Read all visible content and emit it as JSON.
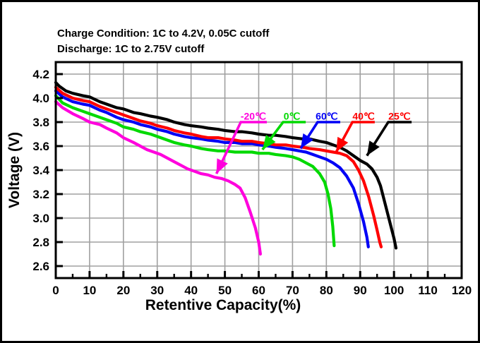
{
  "header": {
    "line1": "Charge Condition: 1C to 4.2V, 0.05C cutoff",
    "line2": "Discharge: 1C to 2.75V cutoff"
  },
  "chart_data": {
    "type": "line",
    "title": "",
    "xlabel": "Retentive Capacity(%)",
    "ylabel": "Voltage (V)",
    "xlim": [
      0,
      120
    ],
    "ylim": [
      2.5,
      4.3
    ],
    "x_major_ticks": [
      0,
      10,
      20,
      30,
      40,
      50,
      60,
      70,
      80,
      90,
      100,
      110,
      120
    ],
    "x_minor_step": 5,
    "y_major_ticks": [
      2.6,
      2.8,
      3.0,
      3.2,
      3.4,
      3.6,
      3.8,
      4.0,
      4.2
    ],
    "y_minor_step": 0.1,
    "grid": true,
    "grid_color": "#a0a0a0",
    "axis_color": "#000000",
    "series": [
      {
        "id": "minus20c",
        "name": "-20℃",
        "color": "#ff00dd",
        "points": [
          [
            0,
            3.97
          ],
          [
            2,
            3.92
          ],
          [
            5,
            3.87
          ],
          [
            8,
            3.83
          ],
          [
            10,
            3.8
          ],
          [
            13,
            3.78
          ],
          [
            15,
            3.75
          ],
          [
            18,
            3.71
          ],
          [
            20,
            3.67
          ],
          [
            23,
            3.63
          ],
          [
            25,
            3.6
          ],
          [
            27,
            3.57
          ],
          [
            29,
            3.55
          ],
          [
            31,
            3.53
          ],
          [
            33,
            3.5
          ],
          [
            35,
            3.47
          ],
          [
            37,
            3.44
          ],
          [
            39,
            3.41
          ],
          [
            41,
            3.39
          ],
          [
            43,
            3.37
          ],
          [
            45,
            3.36
          ],
          [
            47,
            3.34
          ],
          [
            49,
            3.33
          ],
          [
            51,
            3.31
          ],
          [
            53,
            3.28
          ],
          [
            54.5,
            3.25
          ],
          [
            56,
            3.17
          ],
          [
            57.5,
            3.05
          ],
          [
            59,
            2.92
          ],
          [
            60,
            2.8
          ],
          [
            60.5,
            2.7
          ]
        ]
      },
      {
        "id": "0c",
        "name": "0℃",
        "color": "#00d900",
        "points": [
          [
            0,
            4.02
          ],
          [
            2,
            3.96
          ],
          [
            5,
            3.92
          ],
          [
            8,
            3.89
          ],
          [
            10,
            3.87
          ],
          [
            13,
            3.84
          ],
          [
            15,
            3.82
          ],
          [
            18,
            3.79
          ],
          [
            20,
            3.76
          ],
          [
            23,
            3.74
          ],
          [
            25,
            3.72
          ],
          [
            28,
            3.7
          ],
          [
            30,
            3.68
          ],
          [
            33,
            3.65
          ],
          [
            35,
            3.63
          ],
          [
            38,
            3.61
          ],
          [
            40,
            3.6
          ],
          [
            43,
            3.58
          ],
          [
            45,
            3.57
          ],
          [
            48,
            3.56
          ],
          [
            50,
            3.56
          ],
          [
            53,
            3.55
          ],
          [
            55,
            3.55
          ],
          [
            58,
            3.55
          ],
          [
            60,
            3.54
          ],
          [
            63,
            3.54
          ],
          [
            65,
            3.53
          ],
          [
            68,
            3.52
          ],
          [
            70,
            3.51
          ],
          [
            72,
            3.49
          ],
          [
            74,
            3.46
          ],
          [
            76,
            3.43
          ],
          [
            78,
            3.37
          ],
          [
            79.5,
            3.3
          ],
          [
            80.5,
            3.2
          ],
          [
            81.3,
            3.08
          ],
          [
            81.9,
            2.93
          ],
          [
            82.3,
            2.77
          ]
        ]
      },
      {
        "id": "60c",
        "name": "60℃",
        "color": "#0000f5",
        "points": [
          [
            0,
            4.06
          ],
          [
            2,
            4.01
          ],
          [
            5,
            3.97
          ],
          [
            8,
            3.95
          ],
          [
            10,
            3.94
          ],
          [
            13,
            3.9
          ],
          [
            15,
            3.88
          ],
          [
            18,
            3.84
          ],
          [
            20,
            3.82
          ],
          [
            23,
            3.8
          ],
          [
            25,
            3.78
          ],
          [
            28,
            3.76
          ],
          [
            30,
            3.74
          ],
          [
            33,
            3.72
          ],
          [
            35,
            3.7
          ],
          [
            38,
            3.68
          ],
          [
            40,
            3.67
          ],
          [
            43,
            3.66
          ],
          [
            45,
            3.65
          ],
          [
            48,
            3.64
          ],
          [
            50,
            3.63
          ],
          [
            53,
            3.63
          ],
          [
            55,
            3.62
          ],
          [
            58,
            3.62
          ],
          [
            60,
            3.61
          ],
          [
            63,
            3.6
          ],
          [
            65,
            3.59
          ],
          [
            68,
            3.58
          ],
          [
            70,
            3.57
          ],
          [
            72,
            3.56
          ],
          [
            74,
            3.55
          ],
          [
            76,
            3.53
          ],
          [
            78,
            3.51
          ],
          [
            80,
            3.49
          ],
          [
            82,
            3.46
          ],
          [
            84,
            3.42
          ],
          [
            86,
            3.35
          ],
          [
            88,
            3.25
          ],
          [
            89.5,
            3.12
          ],
          [
            91,
            2.97
          ],
          [
            92,
            2.84
          ],
          [
            92.4,
            2.76
          ]
        ]
      },
      {
        "id": "40c",
        "name": "40℃",
        "color": "#ff0000",
        "points": [
          [
            0,
            4.09
          ],
          [
            2,
            4.04
          ],
          [
            5,
            4.0
          ],
          [
            8,
            3.98
          ],
          [
            10,
            3.97
          ],
          [
            13,
            3.93
          ],
          [
            15,
            3.91
          ],
          [
            18,
            3.88
          ],
          [
            20,
            3.86
          ],
          [
            23,
            3.83
          ],
          [
            25,
            3.81
          ],
          [
            28,
            3.79
          ],
          [
            30,
            3.77
          ],
          [
            33,
            3.75
          ],
          [
            35,
            3.73
          ],
          [
            38,
            3.71
          ],
          [
            40,
            3.7
          ],
          [
            43,
            3.68
          ],
          [
            45,
            3.67
          ],
          [
            48,
            3.67
          ],
          [
            50,
            3.66
          ],
          [
            53,
            3.65
          ],
          [
            55,
            3.64
          ],
          [
            58,
            3.64
          ],
          [
            60,
            3.63
          ],
          [
            63,
            3.62
          ],
          [
            65,
            3.61
          ],
          [
            68,
            3.61
          ],
          [
            70,
            3.6
          ],
          [
            73,
            3.59
          ],
          [
            75,
            3.58
          ],
          [
            78,
            3.57
          ],
          [
            80,
            3.56
          ],
          [
            82,
            3.55
          ],
          [
            84,
            3.54
          ],
          [
            86,
            3.52
          ],
          [
            88,
            3.47
          ],
          [
            89.5,
            3.4
          ],
          [
            91,
            3.31
          ],
          [
            92.5,
            3.18
          ],
          [
            94,
            3.02
          ],
          [
            95,
            2.9
          ],
          [
            95.8,
            2.8
          ],
          [
            96.2,
            2.76
          ]
        ]
      },
      {
        "id": "25c",
        "name": "25℃",
        "color": "#000000",
        "points": [
          [
            0,
            4.13
          ],
          [
            1,
            4.1
          ],
          [
            3,
            4.06
          ],
          [
            5,
            4.04
          ],
          [
            8,
            4.02
          ],
          [
            10,
            4.01
          ],
          [
            13,
            3.97
          ],
          [
            15,
            3.95
          ],
          [
            18,
            3.92
          ],
          [
            20,
            3.91
          ],
          [
            23,
            3.88
          ],
          [
            25,
            3.87
          ],
          [
            28,
            3.85
          ],
          [
            30,
            3.84
          ],
          [
            33,
            3.82
          ],
          [
            35,
            3.8
          ],
          [
            38,
            3.78
          ],
          [
            40,
            3.77
          ],
          [
            43,
            3.76
          ],
          [
            45,
            3.75
          ],
          [
            48,
            3.74
          ],
          [
            50,
            3.73
          ],
          [
            53,
            3.72
          ],
          [
            55,
            3.72
          ],
          [
            58,
            3.71
          ],
          [
            60,
            3.7
          ],
          [
            63,
            3.69
          ],
          [
            65,
            3.69
          ],
          [
            68,
            3.68
          ],
          [
            70,
            3.67
          ],
          [
            73,
            3.66
          ],
          [
            75,
            3.66
          ],
          [
            78,
            3.64
          ],
          [
            80,
            3.63
          ],
          [
            82,
            3.61
          ],
          [
            84,
            3.59
          ],
          [
            86,
            3.56
          ],
          [
            88,
            3.52
          ],
          [
            90,
            3.48
          ],
          [
            92,
            3.45
          ],
          [
            93.5,
            3.41
          ],
          [
            95,
            3.34
          ],
          [
            96,
            3.27
          ],
          [
            97,
            3.16
          ],
          [
            98,
            3.05
          ],
          [
            99,
            2.94
          ],
          [
            100,
            2.83
          ],
          [
            100.6,
            2.75
          ]
        ]
      }
    ],
    "annotations": [
      {
        "id": "minus20c",
        "text": "-20℃",
        "text_color": "#ff00dd",
        "line_color": "#ff00dd",
        "label_x": 58.4,
        "label_v": 3.85,
        "path": [
          [
            62.4,
            3.8
          ],
          [
            54.7,
            3.8
          ],
          [
            47.5,
            3.37
          ]
        ]
      },
      {
        "id": "0c",
        "text": "0℃",
        "text_color": "#00d900",
        "line_color": "#00d900",
        "label_x": 69.8,
        "label_v": 3.85,
        "path": [
          [
            73.9,
            3.8
          ],
          [
            67.2,
            3.8
          ],
          [
            61.1,
            3.57
          ]
        ]
      },
      {
        "id": "60c",
        "text": "60℃",
        "text_color": "#0000f5",
        "line_color": "#0000f5",
        "label_x": 80.1,
        "label_v": 3.85,
        "path": [
          [
            84.1,
            3.8
          ],
          [
            77.4,
            3.8
          ],
          [
            72.4,
            3.58
          ]
        ]
      },
      {
        "id": "40c",
        "text": "40℃",
        "text_color": "#ff0000",
        "line_color": "#ff0000",
        "label_x": 91.0,
        "label_v": 3.85,
        "path": [
          [
            94.3,
            3.8
          ],
          [
            87.7,
            3.8
          ],
          [
            82.9,
            3.55
          ]
        ]
      },
      {
        "id": "25c",
        "text": "25℃",
        "text_color": "#ff0000",
        "line_color": "#000000",
        "label_x": 101.6,
        "label_v": 3.85,
        "path": [
          [
            105.2,
            3.8
          ],
          [
            98.3,
            3.8
          ],
          [
            92.0,
            3.52
          ]
        ]
      }
    ]
  }
}
